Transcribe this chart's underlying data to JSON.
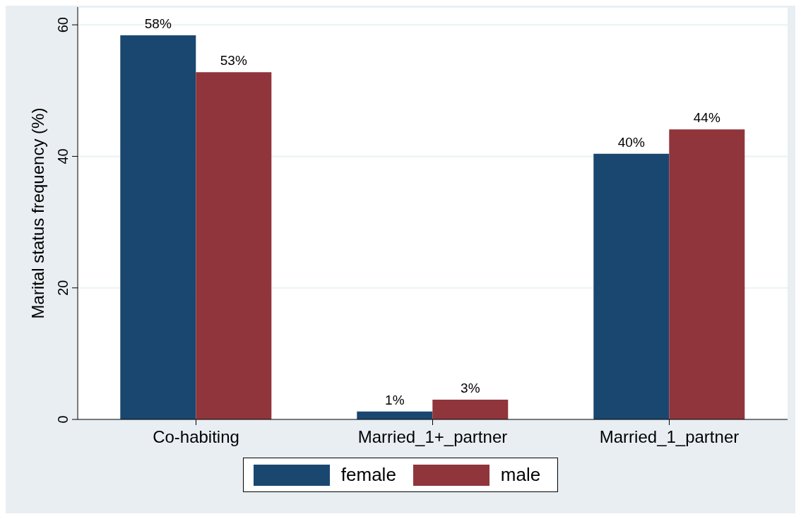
{
  "chart_data": {
    "type": "bar",
    "ylabel": "Marital status frequency (%)",
    "categories": [
      "Co-habiting",
      "Married_1+_partner",
      "Married_1_partner"
    ],
    "series": [
      {
        "name": "female",
        "color": "#1a476f",
        "values": [
          58.4,
          1.2,
          40.4
        ],
        "value_labels": [
          "58%",
          "1%",
          "40%"
        ]
      },
      {
        "name": "male",
        "color": "#90353b",
        "values": [
          52.8,
          3.0,
          44.1
        ],
        "value_labels": [
          "53%",
          "3%",
          "44%"
        ]
      }
    ],
    "ylim": [
      0,
      62.7
    ],
    "yticks": [
      0,
      20,
      40,
      60
    ],
    "grid": "y",
    "legend": "bottom"
  }
}
